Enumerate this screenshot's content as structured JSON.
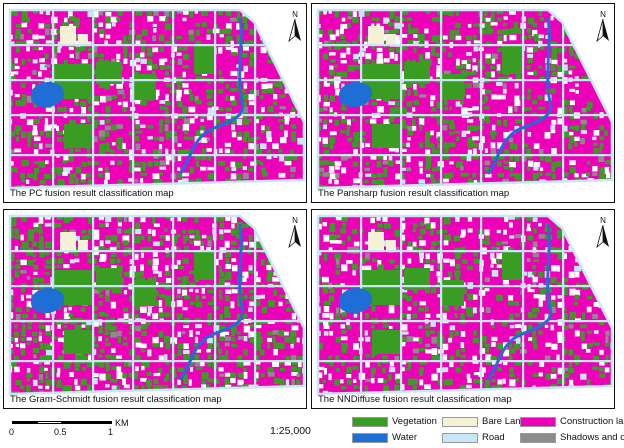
{
  "panels": [
    {
      "caption": "The PC fusion result classification map",
      "variant": "pc"
    },
    {
      "caption": "The Pansharp fusion result classification map",
      "variant": "pansharp"
    },
    {
      "caption": "The Gram-Schmidt fusion result classification map",
      "variant": "gs"
    },
    {
      "caption": "The NNDiffuse fusion result classification map",
      "variant": "nn"
    }
  ],
  "north_label": "N",
  "scale": {
    "ticks": [
      "0",
      "0.5",
      "1"
    ],
    "unit": "KM",
    "ratio": "1:25,000"
  },
  "legend": [
    {
      "label": "Vegetation",
      "color": "#3a9d23"
    },
    {
      "label": "Bare Land",
      "color": "#f4f1d6"
    },
    {
      "label": "Construction land",
      "color": "#ee00b8"
    },
    {
      "label": "Water",
      "color": "#1f6ed6"
    },
    {
      "label": "Road",
      "color": "#c9e6f7"
    },
    {
      "label": "Shadows and others",
      "color": "#8c8c8c"
    }
  ],
  "colors": {
    "construction": "#ee00b8",
    "vegetation": "#3a9d23",
    "water": "#1f6ed6",
    "road": "#c9e6f7",
    "bare": "#f4f1d6",
    "shadow": "#8c8c8c"
  }
}
